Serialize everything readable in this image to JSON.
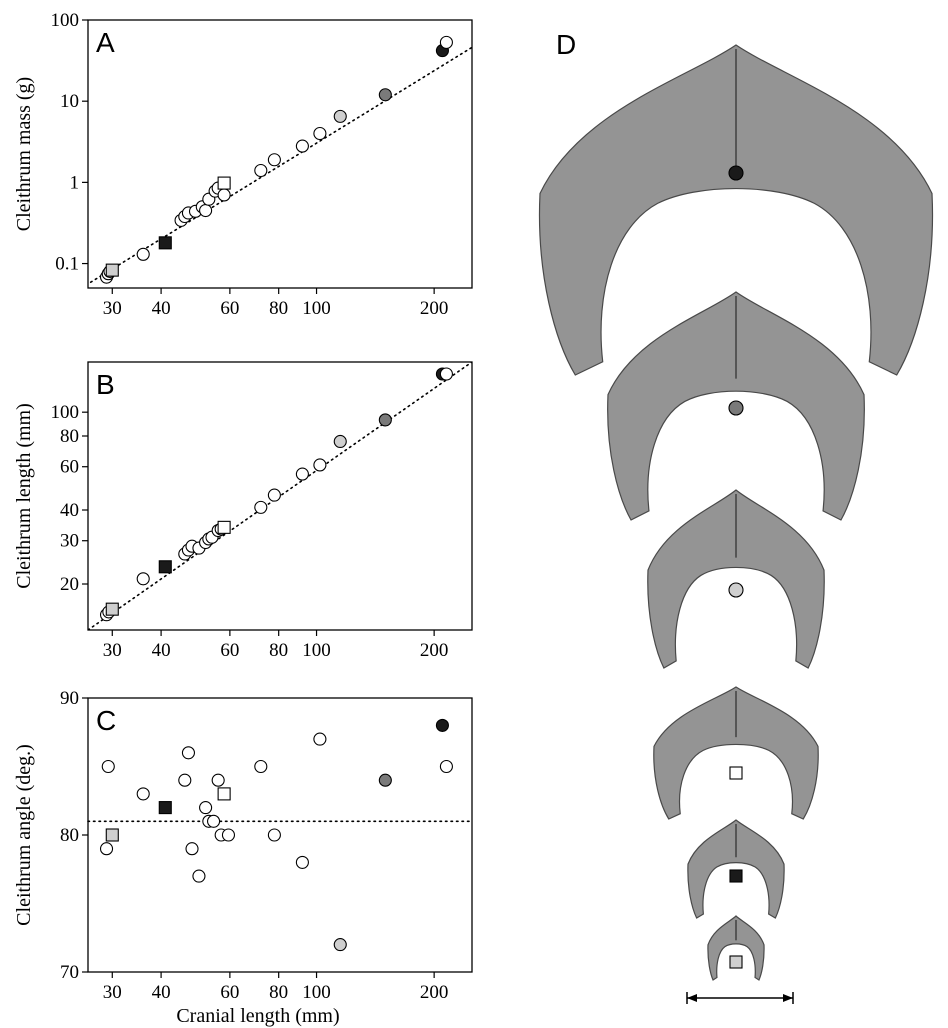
{
  "figure": {
    "x_label": "Cranial length (mm)",
    "panel_D_letter": "D"
  },
  "chart_data": [
    {
      "type": "scatter",
      "panel": "A",
      "ylabel": "Cleithrum mass (g)",
      "xlabel": "Cranial length (mm)",
      "x_scale": "log",
      "y_scale": "log",
      "xlim": [
        26,
        250
      ],
      "ylim": [
        0.05,
        100
      ],
      "xticks": [
        30,
        40,
        60,
        80,
        100,
        200
      ],
      "yticks": [
        0.1,
        1,
        10,
        100
      ],
      "ytick_labels": [
        "0.1",
        "1",
        "10",
        "100"
      ],
      "fit_line": [
        [
          25,
          0.05
        ],
        [
          250,
          46
        ]
      ],
      "points": [
        {
          "x": 29,
          "y": 0.068,
          "marker": "circle",
          "fill": "white"
        },
        {
          "x": 29.3,
          "y": 0.075,
          "marker": "circle",
          "fill": "white"
        },
        {
          "x": 29.6,
          "y": 0.08,
          "marker": "circle",
          "fill": "white"
        },
        {
          "x": 30,
          "y": 0.083,
          "marker": "square",
          "fill": "lightgray"
        },
        {
          "x": 36,
          "y": 0.13,
          "marker": "circle",
          "fill": "white"
        },
        {
          "x": 41,
          "y": 0.18,
          "marker": "square",
          "fill": "black"
        },
        {
          "x": 45,
          "y": 0.34,
          "marker": "circle",
          "fill": "white"
        },
        {
          "x": 46,
          "y": 0.38,
          "marker": "circle",
          "fill": "white"
        },
        {
          "x": 47,
          "y": 0.42,
          "marker": "circle",
          "fill": "white"
        },
        {
          "x": 49,
          "y": 0.44,
          "marker": "circle",
          "fill": "white"
        },
        {
          "x": 51,
          "y": 0.5,
          "marker": "circle",
          "fill": "white"
        },
        {
          "x": 52,
          "y": 0.45,
          "marker": "circle",
          "fill": "white"
        },
        {
          "x": 53,
          "y": 0.62,
          "marker": "circle",
          "fill": "white"
        },
        {
          "x": 55,
          "y": 0.78,
          "marker": "circle",
          "fill": "white"
        },
        {
          "x": 56,
          "y": 0.85,
          "marker": "circle",
          "fill": "white"
        },
        {
          "x": 58,
          "y": 0.7,
          "marker": "circle",
          "fill": "white"
        },
        {
          "x": 58,
          "y": 0.98,
          "marker": "square",
          "fill": "white"
        },
        {
          "x": 72,
          "y": 1.4,
          "marker": "circle",
          "fill": "white"
        },
        {
          "x": 78,
          "y": 1.9,
          "marker": "circle",
          "fill": "white"
        },
        {
          "x": 92,
          "y": 2.8,
          "marker": "circle",
          "fill": "white"
        },
        {
          "x": 102,
          "y": 4.0,
          "marker": "circle",
          "fill": "white"
        },
        {
          "x": 115,
          "y": 6.5,
          "marker": "circle",
          "fill": "lightgray"
        },
        {
          "x": 150,
          "y": 12,
          "marker": "circle",
          "fill": "gray"
        },
        {
          "x": 210,
          "y": 42,
          "marker": "circle",
          "fill": "black"
        },
        {
          "x": 215,
          "y": 53,
          "marker": "circle",
          "fill": "white"
        }
      ]
    },
    {
      "type": "scatter",
      "panel": "B",
      "ylabel": "Cleithrum length (mm)",
      "xlabel": "Cranial length (mm)",
      "x_scale": "log",
      "y_scale": "log",
      "xlim": [
        26,
        250
      ],
      "ylim": [
        13,
        160
      ],
      "xticks": [
        30,
        40,
        60,
        80,
        100,
        200
      ],
      "yticks": [
        20,
        30,
        40,
        60,
        80,
        100
      ],
      "ytick_labels": [
        "20",
        "30",
        "40",
        "60",
        "80",
        "100"
      ],
      "fit_line": [
        [
          26,
          13
        ],
        [
          250,
          160
        ]
      ],
      "points": [
        {
          "x": 29,
          "y": 15,
          "marker": "circle",
          "fill": "white"
        },
        {
          "x": 29.4,
          "y": 15.4,
          "marker": "circle",
          "fill": "white"
        },
        {
          "x": 30,
          "y": 15.8,
          "marker": "square",
          "fill": "lightgray"
        },
        {
          "x": 36,
          "y": 21,
          "marker": "circle",
          "fill": "white"
        },
        {
          "x": 41,
          "y": 23.5,
          "marker": "square",
          "fill": "black"
        },
        {
          "x": 46,
          "y": 26.5,
          "marker": "circle",
          "fill": "white"
        },
        {
          "x": 47,
          "y": 27.5,
          "marker": "circle",
          "fill": "white"
        },
        {
          "x": 48,
          "y": 28.5,
          "marker": "circle",
          "fill": "white"
        },
        {
          "x": 50,
          "y": 28,
          "marker": "circle",
          "fill": "white"
        },
        {
          "x": 52,
          "y": 29.5,
          "marker": "circle",
          "fill": "white"
        },
        {
          "x": 53,
          "y": 30.5,
          "marker": "circle",
          "fill": "white"
        },
        {
          "x": 54,
          "y": 31,
          "marker": "circle",
          "fill": "white"
        },
        {
          "x": 56,
          "y": 33,
          "marker": "circle",
          "fill": "white"
        },
        {
          "x": 57,
          "y": 33.5,
          "marker": "circle",
          "fill": "white"
        },
        {
          "x": 58,
          "y": 34,
          "marker": "square",
          "fill": "white"
        },
        {
          "x": 72,
          "y": 41,
          "marker": "circle",
          "fill": "white"
        },
        {
          "x": 78,
          "y": 46,
          "marker": "circle",
          "fill": "white"
        },
        {
          "x": 92,
          "y": 56,
          "marker": "circle",
          "fill": "white"
        },
        {
          "x": 102,
          "y": 61,
          "marker": "circle",
          "fill": "white"
        },
        {
          "x": 115,
          "y": 76,
          "marker": "circle",
          "fill": "lightgray"
        },
        {
          "x": 150,
          "y": 93,
          "marker": "circle",
          "fill": "gray"
        },
        {
          "x": 210,
          "y": 143,
          "marker": "circle",
          "fill": "black"
        },
        {
          "x": 215,
          "y": 143,
          "marker": "circle",
          "fill": "white"
        }
      ]
    },
    {
      "type": "scatter",
      "panel": "C",
      "ylabel": "Cleithrum angle (deg.)",
      "xlabel": "Cranial length (mm)",
      "x_scale": "log",
      "y_scale": "linear",
      "xlim": [
        26,
        250
      ],
      "ylim": [
        70,
        90
      ],
      "xticks": [
        30,
        40,
        60,
        80,
        100,
        200
      ],
      "yticks": [
        70,
        80,
        90
      ],
      "ytick_labels": [
        "70",
        "80",
        "90"
      ],
      "ref_line": 81,
      "points": [
        {
          "x": 29,
          "y": 79,
          "marker": "circle",
          "fill": "white"
        },
        {
          "x": 29.3,
          "y": 85,
          "marker": "circle",
          "fill": "white"
        },
        {
          "x": 30,
          "y": 80,
          "marker": "square",
          "fill": "lightgray"
        },
        {
          "x": 36,
          "y": 83,
          "marker": "circle",
          "fill": "white"
        },
        {
          "x": 41,
          "y": 82,
          "marker": "square",
          "fill": "black"
        },
        {
          "x": 46,
          "y": 84,
          "marker": "circle",
          "fill": "white"
        },
        {
          "x": 47,
          "y": 86,
          "marker": "circle",
          "fill": "white"
        },
        {
          "x": 48,
          "y": 79,
          "marker": "circle",
          "fill": "white"
        },
        {
          "x": 50,
          "y": 77,
          "marker": "circle",
          "fill": "white"
        },
        {
          "x": 52,
          "y": 82,
          "marker": "circle",
          "fill": "white"
        },
        {
          "x": 53,
          "y": 81,
          "marker": "circle",
          "fill": "white"
        },
        {
          "x": 54.5,
          "y": 81,
          "marker": "circle",
          "fill": "white"
        },
        {
          "x": 56,
          "y": 84,
          "marker": "circle",
          "fill": "white"
        },
        {
          "x": 57,
          "y": 80,
          "marker": "circle",
          "fill": "white"
        },
        {
          "x": 58,
          "y": 83,
          "marker": "square",
          "fill": "white"
        },
        {
          "x": 59.5,
          "y": 80,
          "marker": "circle",
          "fill": "white"
        },
        {
          "x": 72,
          "y": 85,
          "marker": "circle",
          "fill": "white"
        },
        {
          "x": 78,
          "y": 80,
          "marker": "circle",
          "fill": "white"
        },
        {
          "x": 92,
          "y": 78,
          "marker": "circle",
          "fill": "white"
        },
        {
          "x": 102,
          "y": 87,
          "marker": "circle",
          "fill": "white"
        },
        {
          "x": 115,
          "y": 72,
          "marker": "circle",
          "fill": "lightgray"
        },
        {
          "x": 150,
          "y": 84,
          "marker": "circle",
          "fill": "gray"
        },
        {
          "x": 210,
          "y": 88,
          "marker": "circle",
          "fill": "black"
        },
        {
          "x": 215,
          "y": 85,
          "marker": "circle",
          "fill": "white"
        }
      ]
    }
  ],
  "specimens": [
    {
      "marker": "circle",
      "fill": "black",
      "color": "#1a1a1a"
    },
    {
      "marker": "circle",
      "fill": "gray",
      "color": "#7a7a7a"
    },
    {
      "marker": "circle",
      "fill": "lightgray",
      "color": "#cfcfcf"
    },
    {
      "marker": "square",
      "fill": "white",
      "color": "#ffffff"
    },
    {
      "marker": "square",
      "fill": "black",
      "color": "#1a1a1a"
    },
    {
      "marker": "square",
      "fill": "lightgray",
      "color": "#cfcfcf"
    }
  ],
  "colors": {
    "white": "#ffffff",
    "black": "#1a1a1a",
    "gray": "#7a7a7a",
    "lightgray": "#cfcfcf",
    "bone": "#8c8c8c"
  }
}
